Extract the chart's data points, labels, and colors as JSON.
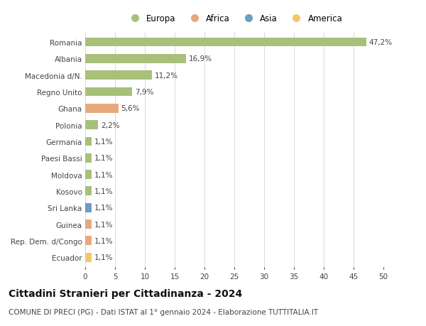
{
  "countries": [
    "Romania",
    "Albania",
    "Macedonia d/N.",
    "Regno Unito",
    "Ghana",
    "Polonia",
    "Germania",
    "Paesi Bassi",
    "Moldova",
    "Kosovo",
    "Sri Lanka",
    "Guinea",
    "Rep. Dem. d/Congo",
    "Ecuador"
  ],
  "values": [
    47.2,
    16.9,
    11.2,
    7.9,
    5.6,
    2.2,
    1.1,
    1.1,
    1.1,
    1.1,
    1.1,
    1.1,
    1.1,
    1.1
  ],
  "labels": [
    "47,2%",
    "16,9%",
    "11,2%",
    "7,9%",
    "5,6%",
    "2,2%",
    "1,1%",
    "1,1%",
    "1,1%",
    "1,1%",
    "1,1%",
    "1,1%",
    "1,1%",
    "1,1%"
  ],
  "colors": [
    "#a8c07a",
    "#a8c07a",
    "#a8c07a",
    "#a8c07a",
    "#e8a87c",
    "#a8c07a",
    "#a8c07a",
    "#a8c07a",
    "#a8c07a",
    "#a8c07a",
    "#6a9ec0",
    "#e8a87c",
    "#e8a87c",
    "#f0c96a"
  ],
  "legend_labels": [
    "Europa",
    "Africa",
    "Asia",
    "America"
  ],
  "legend_colors": [
    "#a8c07a",
    "#e8a87c",
    "#6a9ec0",
    "#f0c96a"
  ],
  "title": "Cittadini Stranieri per Cittadinanza - 2024",
  "subtitle": "COMUNE DI PRECI (PG) - Dati ISTAT al 1° gennaio 2024 - Elaborazione TUTTITALIA.IT",
  "xlim": [
    0,
    50
  ],
  "xticks": [
    0,
    5,
    10,
    15,
    20,
    25,
    30,
    35,
    40,
    45,
    50
  ],
  "bg_color": "#ffffff",
  "grid_color": "#dddddd",
  "bar_height": 0.55,
  "label_fontsize": 7.5,
  "tick_fontsize": 7.5,
  "title_fontsize": 10,
  "subtitle_fontsize": 7.5
}
